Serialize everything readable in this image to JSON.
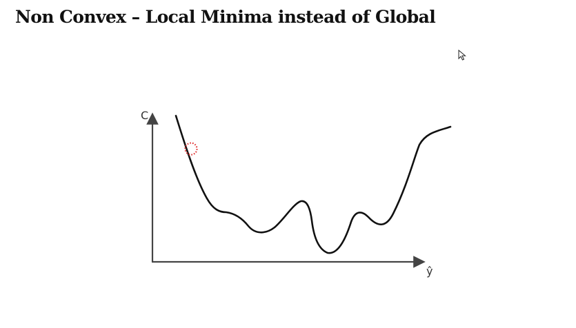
{
  "slide": {
    "title": "Non Convex – Local Minima instead of Global"
  },
  "diagram": {
    "y_axis_label": "C",
    "x_axis_label": "ŷ",
    "curve_color": "#111111",
    "axis_color": "#444444",
    "marker_color": "#e03030"
  },
  "icons": {
    "cursor": "mouse-pointer-icon"
  }
}
